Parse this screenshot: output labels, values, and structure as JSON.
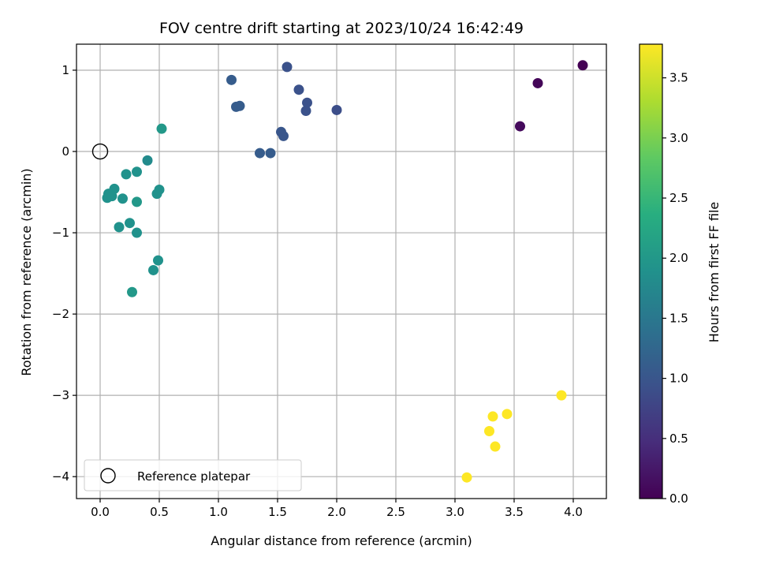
{
  "chart_data": {
    "type": "scatter",
    "title": "FOV centre drift starting at 2023/10/24 16:42:49",
    "xlabel": "Angular distance from reference (arcmin)",
    "ylabel": "Rotation from reference (arcmin)",
    "xlim": [
      -0.2,
      4.28
    ],
    "ylim": [
      -4.27,
      1.32
    ],
    "xticks": [
      0.0,
      0.5,
      1.0,
      1.5,
      2.0,
      2.5,
      3.0,
      3.5,
      4.0
    ],
    "xtick_labels": [
      "0.0",
      "0.5",
      "1.0",
      "1.5",
      "2.0",
      "2.5",
      "3.0",
      "3.5",
      "4.0"
    ],
    "yticks": [
      1,
      0,
      -1,
      -2,
      -3,
      -4
    ],
    "ytick_labels": [
      "1",
      "0",
      "−1",
      "−2",
      "−3",
      "−4"
    ],
    "grid": true,
    "colormap": "viridis",
    "colorbar": {
      "label": "Hours from first FF file",
      "range": [
        0.0,
        3.78
      ],
      "ticks": [
        0.0,
        0.5,
        1.0,
        1.5,
        2.0,
        2.5,
        3.0,
        3.5
      ],
      "tick_labels": [
        "0.0",
        "0.5",
        "1.0",
        "1.5",
        "2.0",
        "2.5",
        "3.0",
        "3.5"
      ]
    },
    "legend": {
      "placement": "lower-left",
      "entries": [
        {
          "label": "Reference platepar",
          "marker": "open-circle"
        }
      ]
    },
    "reference_point": {
      "x": 0.0,
      "y": 0.0
    },
    "points": [
      {
        "x": 4.08,
        "y": 1.06,
        "hours": 0.0
      },
      {
        "x": 3.7,
        "y": 0.84,
        "hours": 0.05
      },
      {
        "x": 3.55,
        "y": 0.31,
        "hours": 0.1
      },
      {
        "x": 1.58,
        "y": 1.04,
        "hours": 0.95
      },
      {
        "x": 1.11,
        "y": 0.88,
        "hours": 1.1
      },
      {
        "x": 1.68,
        "y": 0.76,
        "hours": 0.95
      },
      {
        "x": 1.15,
        "y": 0.55,
        "hours": 1.1
      },
      {
        "x": 1.18,
        "y": 0.56,
        "hours": 1.1
      },
      {
        "x": 1.75,
        "y": 0.6,
        "hours": 0.95
      },
      {
        "x": 1.74,
        "y": 0.5,
        "hours": 0.95
      },
      {
        "x": 2.0,
        "y": 0.51,
        "hours": 0.9
      },
      {
        "x": 1.53,
        "y": 0.24,
        "hours": 1.0
      },
      {
        "x": 1.55,
        "y": 0.19,
        "hours": 1.0
      },
      {
        "x": 1.35,
        "y": -0.02,
        "hours": 1.1
      },
      {
        "x": 1.44,
        "y": -0.02,
        "hours": 1.1
      },
      {
        "x": 0.52,
        "y": 0.28,
        "hours": 2.0
      },
      {
        "x": 0.4,
        "y": -0.11,
        "hours": 1.8
      },
      {
        "x": 0.22,
        "y": -0.28,
        "hours": 1.9
      },
      {
        "x": 0.31,
        "y": -0.25,
        "hours": 1.9
      },
      {
        "x": 0.12,
        "y": -0.46,
        "hours": 1.9
      },
      {
        "x": 0.07,
        "y": -0.52,
        "hours": 1.9
      },
      {
        "x": 0.06,
        "y": -0.57,
        "hours": 1.9
      },
      {
        "x": 0.1,
        "y": -0.55,
        "hours": 1.9
      },
      {
        "x": 0.19,
        "y": -0.58,
        "hours": 1.9
      },
      {
        "x": 0.31,
        "y": -0.62,
        "hours": 2.0
      },
      {
        "x": 0.5,
        "y": -0.47,
        "hours": 1.9
      },
      {
        "x": 0.48,
        "y": -0.52,
        "hours": 1.9
      },
      {
        "x": 0.25,
        "y": -0.88,
        "hours": 1.9
      },
      {
        "x": 0.16,
        "y": -0.93,
        "hours": 1.9
      },
      {
        "x": 0.31,
        "y": -1.0,
        "hours": 1.9
      },
      {
        "x": 0.49,
        "y": -1.34,
        "hours": 1.9
      },
      {
        "x": 0.45,
        "y": -1.46,
        "hours": 1.9
      },
      {
        "x": 0.27,
        "y": -1.73,
        "hours": 2.0
      },
      {
        "x": 3.9,
        "y": -3.0,
        "hours": 3.78
      },
      {
        "x": 3.44,
        "y": -3.23,
        "hours": 3.78
      },
      {
        "x": 3.32,
        "y": -3.26,
        "hours": 3.78
      },
      {
        "x": 3.29,
        "y": -3.44,
        "hours": 3.78
      },
      {
        "x": 3.34,
        "y": -3.63,
        "hours": 3.78
      },
      {
        "x": 3.1,
        "y": -4.01,
        "hours": 3.78
      }
    ]
  }
}
